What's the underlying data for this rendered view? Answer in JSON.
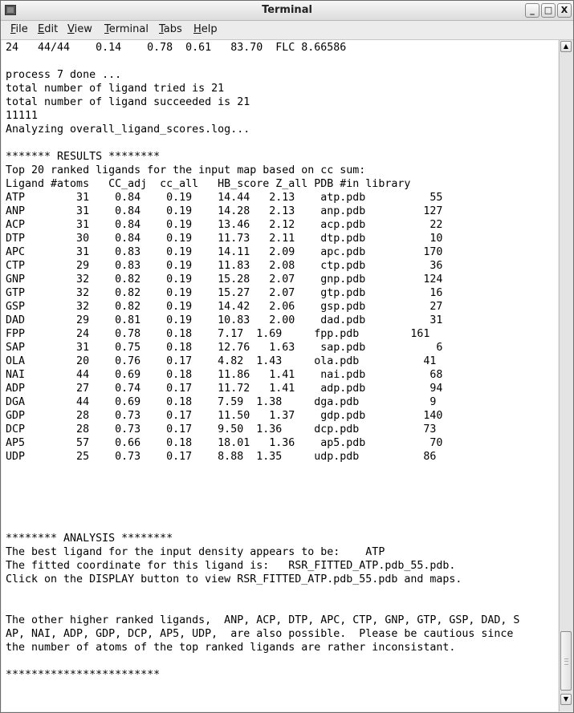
{
  "window": {
    "title": "Terminal",
    "icon": "terminal-app-icon",
    "minimize_label": "_",
    "maximize_label": "□",
    "close_label": "X"
  },
  "menu": {
    "items": [
      "File",
      "Edit",
      "View",
      "Terminal",
      "Tabs",
      "Help"
    ]
  },
  "terminal": {
    "lines": [
      "24   44/44    0.14    0.78  0.61   83.70  FLC 8.66586",
      "",
      "process 7 done ...",
      "total number of ligand tried is 21",
      "total number of ligand succeeded is 21",
      "11111",
      "Analyzing overall_ligand_scores.log...",
      "",
      "******* RESULTS ********",
      "Top 20 ranked ligands for the input map based on cc sum:",
      "Ligand #atoms   CC_adj  cc_all   HB_score Z_all PDB #in library",
      "ATP        31    0.84    0.19    14.44   2.13    atp.pdb          55",
      "ANP        31    0.84    0.19    14.28   2.13    anp.pdb         127",
      "ACP        31    0.84    0.19    13.46   2.12    acp.pdb          22",
      "DTP        30    0.84    0.19    11.73   2.11    dtp.pdb          10",
      "APC        31    0.83    0.19    14.11   2.09    apc.pdb         170",
      "CTP        29    0.83    0.19    11.83   2.08    ctp.pdb          36",
      "GNP        32    0.82    0.19    15.28   2.07    gnp.pdb         124",
      "GTP        32    0.82    0.19    15.27   2.07    gtp.pdb          16",
      "GSP        32    0.82    0.19    14.42   2.06    gsp.pdb          27",
      "DAD        29    0.81    0.19    10.83   2.00    dad.pdb          31",
      "FPP        24    0.78    0.18    7.17  1.69     fpp.pdb        161",
      "SAP        31    0.75    0.18    12.76   1.63    sap.pdb           6",
      "OLA        20    0.76    0.17    4.82  1.43     ola.pdb          41",
      "NAI        44    0.69    0.18    11.86   1.41    nai.pdb          68",
      "ADP        27    0.74    0.17    11.72   1.41    adp.pdb          94",
      "DGA        44    0.69    0.18    7.59  1.38     dga.pdb           9",
      "GDP        28    0.73    0.17    11.50   1.37    gdp.pdb         140",
      "DCP        28    0.73    0.17    9.50  1.36     dcp.pdb          73",
      "AP5        57    0.66    0.18    18.01   1.36    ap5.pdb          70",
      "UDP        25    0.73    0.17    8.88  1.35     udp.pdb          86",
      "",
      "",
      "",
      "",
      "",
      "******** ANALYSIS ********",
      "The best ligand for the input density appears to be:    ATP",
      "The fitted coordinate for this ligand is:   RSR_FITTED_ATP.pdb_55.pdb.",
      "Click on the DISPLAY button to view RSR_FITTED_ATP.pdb_55.pdb and maps.",
      "",
      "",
      "The other higher ranked ligands,  ANP, ACP, DTP, APC, CTP, GNP, GTP, GSP, DAD, S",
      "AP, NAI, ADP, GDP, DCP, AP5, UDP,  are also possible.  Please be cautious since",
      "the number of atoms of the top ranked ligands are rather inconsistant.",
      "",
      "************************"
    ]
  },
  "scrollbar": {
    "up_arrow": "▲",
    "down_arrow": "▼",
    "scroll_position_fraction": 0.98
  }
}
